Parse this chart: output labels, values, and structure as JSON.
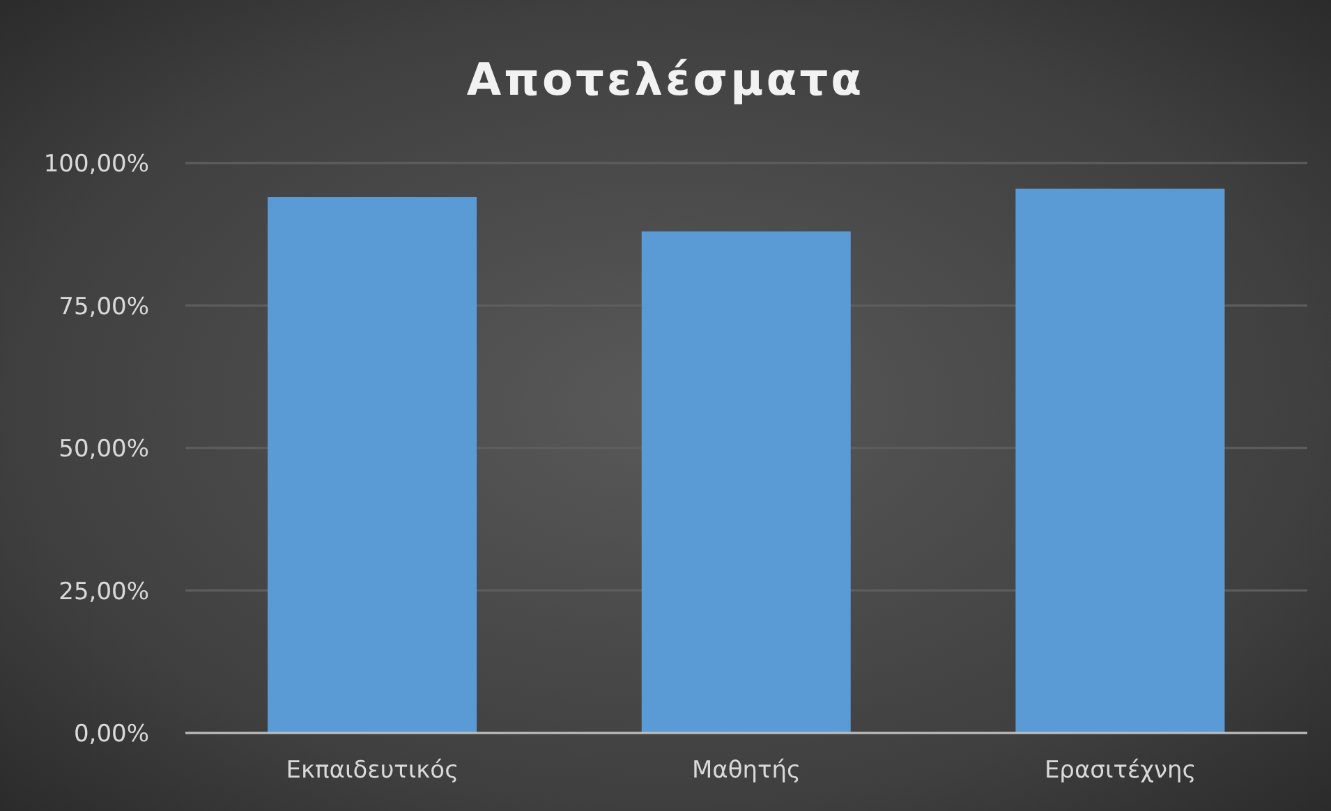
{
  "chart_data": {
    "type": "bar",
    "title": "Αποτελέσματα",
    "categories": [
      "Εκπαιδευτικός",
      "Μαθητής",
      "Ερασιτέχνης"
    ],
    "values": [
      94,
      88,
      95.5
    ],
    "color": "#5b9bd5",
    "ylim": [
      0,
      100
    ],
    "yticks": [
      {
        "value": 0,
        "label": "0,00%"
      },
      {
        "value": 25,
        "label": "25,00%"
      },
      {
        "value": 50,
        "label": "50,00%"
      },
      {
        "value": 75,
        "label": "75,00%"
      },
      {
        "value": 100,
        "label": "100,00%"
      }
    ],
    "grid": "y",
    "legend": false
  }
}
